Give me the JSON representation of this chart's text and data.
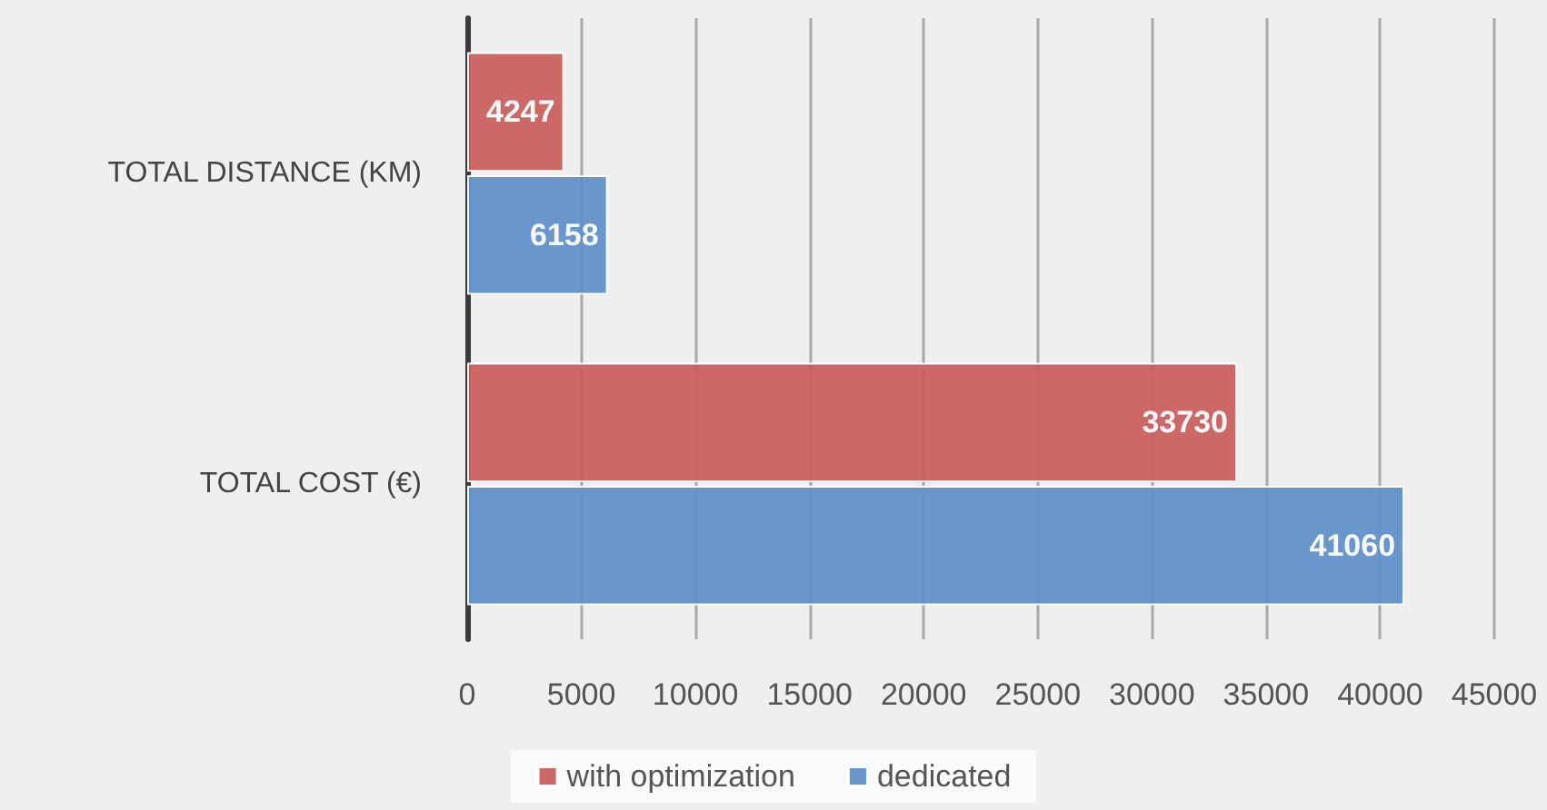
{
  "chart_data": {
    "type": "bar",
    "orientation": "horizontal",
    "categories": [
      "TOTAL DISTANCE (KM)",
      "TOTAL COST (€)"
    ],
    "series": [
      {
        "name": "with optimization",
        "color": "#c9605e",
        "values": [
          4247,
          33730
        ]
      },
      {
        "name": "dedicated",
        "color": "#6190c8",
        "values": [
          6158,
          41060
        ]
      }
    ],
    "xlim": [
      0,
      45000
    ],
    "xticks": [
      0,
      5000,
      10000,
      15000,
      20000,
      25000,
      30000,
      35000,
      40000,
      45000
    ],
    "grid": "x",
    "legend": "bottom",
    "data_labels": true
  }
}
